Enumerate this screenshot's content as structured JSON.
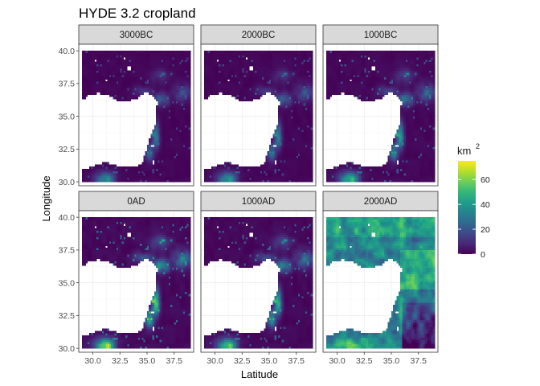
{
  "chart_data": {
    "type": "heatmap",
    "title": "HYDE 3.2 cropland",
    "xlabel": "Latitude",
    "ylabel": "Longitude",
    "x_ticks": [
      30.0,
      32.5,
      35.0,
      37.5
    ],
    "x_tick_labels": [
      "30.0",
      "32.5",
      "35.0",
      "37.5"
    ],
    "y_ticks": [
      30.0,
      32.5,
      35.0,
      37.5,
      40.0
    ],
    "y_tick_labels": [
      "30.0",
      "32.5",
      "35.0",
      "37.5",
      "40.0"
    ],
    "xlim": [
      28.7,
      39.3
    ],
    "ylim": [
      29.7,
      40.5
    ],
    "data_extent": {
      "x": [
        29.0,
        39.0
      ],
      "y": [
        30.0,
        40.0
      ]
    },
    "facets": [
      "3000BC",
      "2000BC",
      "1000BC",
      "0AD",
      "1000AD",
      "2000AD"
    ],
    "facet_layout": {
      "rows": 2,
      "cols": 3
    },
    "facet_intensity": [
      0.55,
      0.6,
      0.75,
      1.0,
      0.85,
      3.2
    ],
    "color_scale": {
      "name": "viridis",
      "title": "km",
      "title_superscript": "2",
      "min": 0,
      "max": 75,
      "breaks": [
        0,
        20,
        40,
        60
      ],
      "break_labels": [
        "0",
        "20",
        "40",
        "60"
      ],
      "stops": [
        "#440154",
        "#482878",
        "#3e4989",
        "#31688e",
        "#26828e",
        "#1f9e89",
        "#35b779",
        "#6ece58",
        "#b5de2b",
        "#fde725"
      ]
    },
    "grid": true,
    "legend_position": "right",
    "panel_background": "#ffffff",
    "strip_background": "#d9d9d9"
  }
}
